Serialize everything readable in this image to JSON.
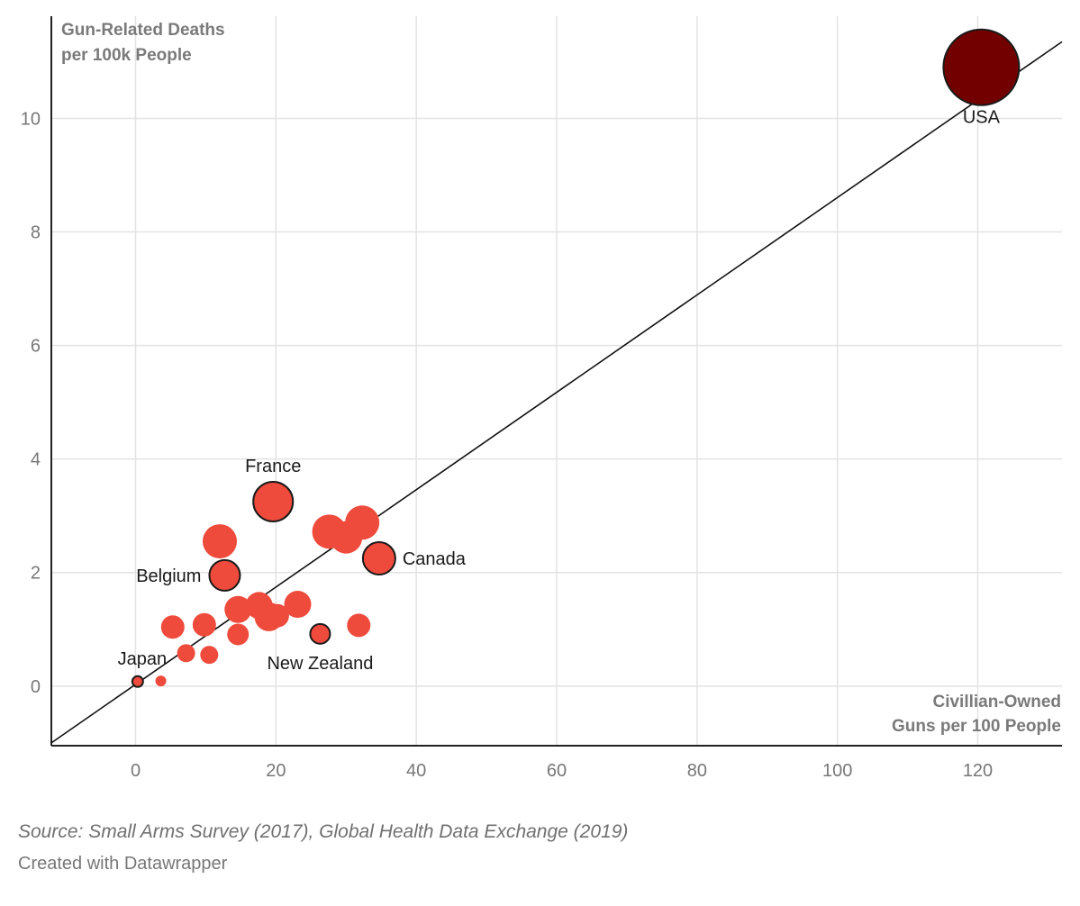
{
  "chart_data": {
    "type": "scatter",
    "title": "",
    "ylabel": [
      "Gun-Related Deaths",
      "per 100k People"
    ],
    "xlabel": [
      "Civillian-Owned",
      "Guns per 100 People"
    ],
    "xlim": [
      -12,
      132
    ],
    "ylim": [
      -1.05,
      11.8
    ],
    "xticks": [
      0,
      20,
      40,
      60,
      80,
      100,
      120
    ],
    "yticks": [
      0,
      2,
      4,
      6,
      8,
      10
    ],
    "colors": {
      "points": "#ef4b3c",
      "highlight": "#730000",
      "outline": "#1a1a1a",
      "trend": "#111111"
    },
    "trendline": {
      "x": [
        -12,
        132
      ],
      "y": [
        -1.0,
        11.35
      ]
    },
    "points": [
      {
        "x": 120.5,
        "y": 10.9,
        "size": 42,
        "label": "USA",
        "outlined": true,
        "color": "#730000"
      },
      {
        "x": 19.6,
        "y": 3.25,
        "size": 22,
        "label": "France",
        "outlined": true
      },
      {
        "x": 34.7,
        "y": 2.25,
        "size": 18,
        "label": "Canada",
        "outlined": true
      },
      {
        "x": 12.7,
        "y": 1.95,
        "size": 17,
        "label": "Belgium",
        "outlined": true
      },
      {
        "x": 26.3,
        "y": 0.92,
        "size": 11,
        "label": "New Zealand",
        "outlined": true
      },
      {
        "x": 0.3,
        "y": 0.08,
        "size": 6,
        "label": "Japan",
        "outlined": true
      },
      {
        "x": 12.0,
        "y": 2.55,
        "size": 19
      },
      {
        "x": 27.6,
        "y": 2.72,
        "size": 19
      },
      {
        "x": 30.0,
        "y": 2.62,
        "size": 18
      },
      {
        "x": 32.3,
        "y": 2.88,
        "size": 19
      },
      {
        "x": 14.6,
        "y": 1.35,
        "size": 15
      },
      {
        "x": 17.6,
        "y": 1.42,
        "size": 15
      },
      {
        "x": 19.0,
        "y": 1.22,
        "size": 16
      },
      {
        "x": 20.2,
        "y": 1.24,
        "size": 13
      },
      {
        "x": 23.1,
        "y": 1.44,
        "size": 15
      },
      {
        "x": 31.8,
        "y": 1.07,
        "size": 13
      },
      {
        "x": 5.3,
        "y": 1.04,
        "size": 13
      },
      {
        "x": 9.8,
        "y": 1.08,
        "size": 13
      },
      {
        "x": 14.6,
        "y": 0.91,
        "size": 12
      },
      {
        "x": 7.2,
        "y": 0.58,
        "size": 10
      },
      {
        "x": 10.5,
        "y": 0.55,
        "size": 10
      },
      {
        "x": 3.6,
        "y": 0.09,
        "size": 6
      }
    ]
  },
  "footer": {
    "source": "Source: Small Arms Survey (2017), Global Health Data Exchange (2019)",
    "credit": "Created with Datawrapper"
  }
}
